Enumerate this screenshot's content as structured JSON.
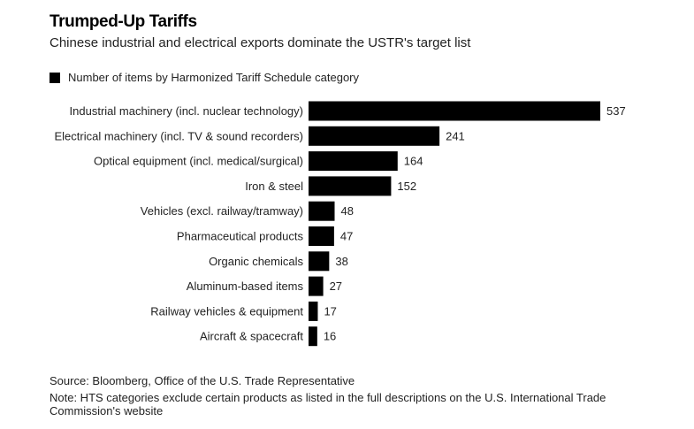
{
  "title": "Trumped-Up Tariffs",
  "subtitle": "Chinese industrial and electrical exports dominate the USTR's target list",
  "legend_label": "Number of items by Harmonized Tariff Schedule category",
  "source": "Source: Bloomberg, Office of the U.S. Trade Representative",
  "note": "Note: HTS categories exclude certain products as listed in the full descriptions on the U.S. International Trade Commission's website",
  "colors": {
    "bar": "#000000"
  },
  "chart_data": {
    "type": "bar",
    "orientation": "horizontal",
    "categories": [
      "Industrial machinery (incl. nuclear technology)",
      "Electrical machinery (incl. TV & sound recorders)",
      "Optical equipment (incl. medical/surgical)",
      "Iron & steel",
      "Vehicles (excl. railway/tramway)",
      "Pharmaceutical products",
      "Organic chemicals",
      "Aluminum-based items",
      "Railway vehicles & equipment",
      "Aircraft & spacecraft"
    ],
    "values": [
      537,
      241,
      164,
      152,
      48,
      47,
      38,
      27,
      17,
      16
    ],
    "xlim": [
      0,
      537
    ],
    "grid": false,
    "legend_position": "top-left"
  }
}
